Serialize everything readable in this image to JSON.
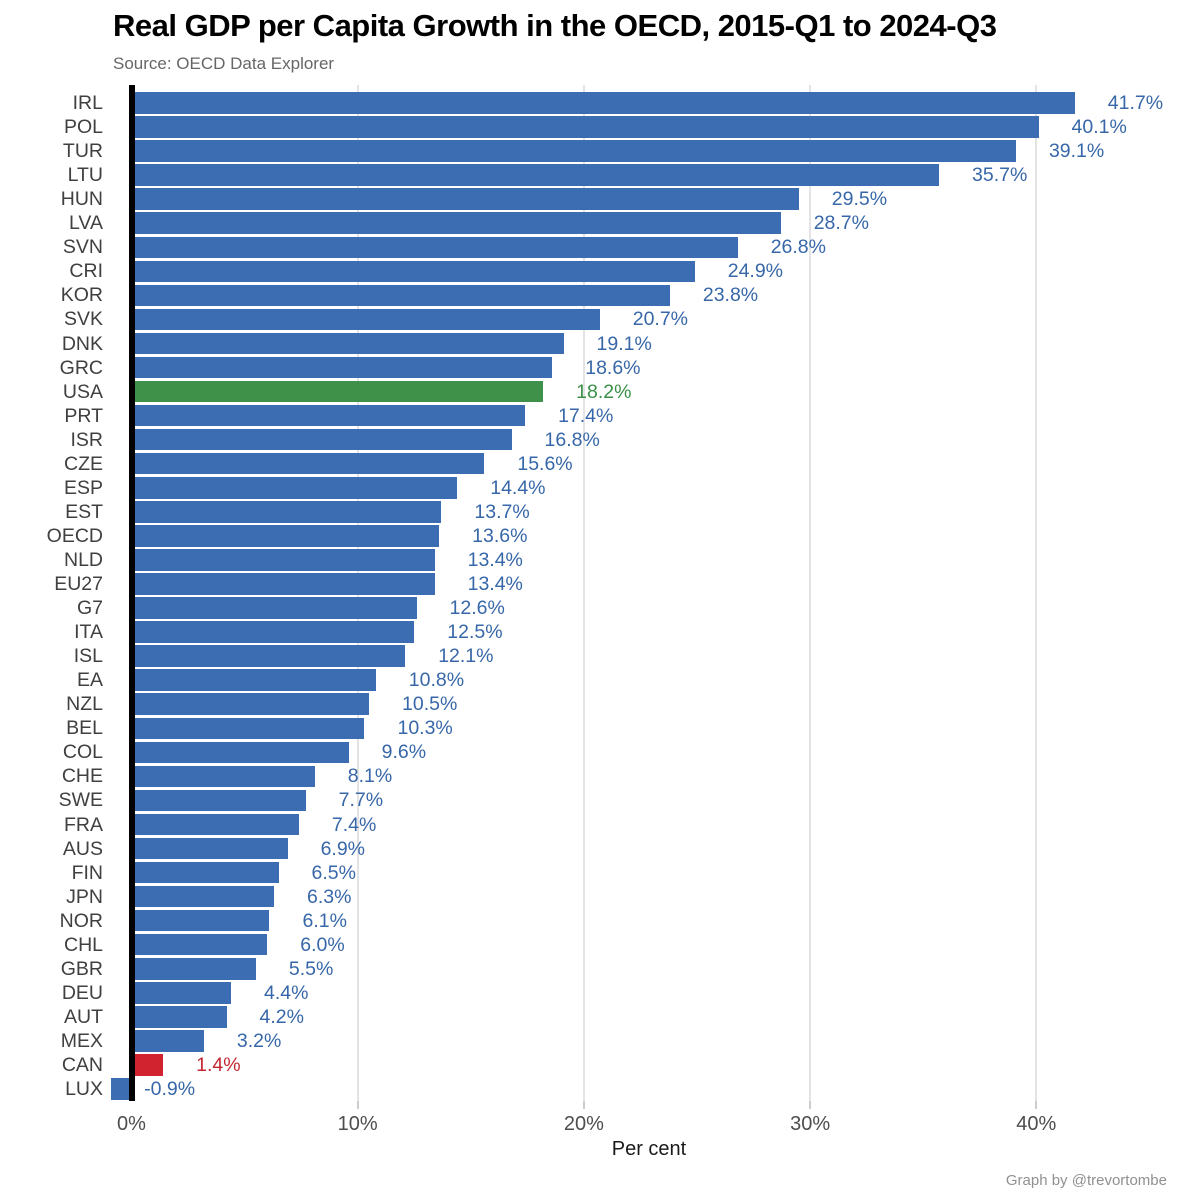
{
  "header": {
    "title": "Real GDP per Capita Growth in the OECD, 2015-Q1 to 2024-Q3",
    "subtitle": "Source: OECD Data Explorer"
  },
  "attribution": "Graph by @trevortombe",
  "chart_data": {
    "type": "bar",
    "orientation": "horizontal",
    "title": "Real GDP per Capita Growth in the OECD, 2015-Q1 to 2024-Q3",
    "subtitle": "Source: OECD Data Explorer",
    "xlabel": "Per cent",
    "ylabel": "",
    "xlim": [
      -2,
      46
    ],
    "grid": "vertical-light-gray",
    "legend": "none",
    "x_ticks": [
      {
        "value": 0,
        "label": "0%"
      },
      {
        "value": 10,
        "label": "10%"
      },
      {
        "value": 20,
        "label": "20%"
      },
      {
        "value": 30,
        "label": "30%"
      },
      {
        "value": 40,
        "label": "40%"
      }
    ],
    "entries": [
      {
        "label": "IRL",
        "value": 41.7,
        "display": "41.7%",
        "color": "blue"
      },
      {
        "label": "POL",
        "value": 40.1,
        "display": "40.1%",
        "color": "blue"
      },
      {
        "label": "TUR",
        "value": 39.1,
        "display": "39.1%",
        "color": "blue"
      },
      {
        "label": "LTU",
        "value": 35.7,
        "display": "35.7%",
        "color": "blue"
      },
      {
        "label": "HUN",
        "value": 29.5,
        "display": "29.5%",
        "color": "blue"
      },
      {
        "label": "LVA",
        "value": 28.7,
        "display": "28.7%",
        "color": "blue"
      },
      {
        "label": "SVN",
        "value": 26.8,
        "display": "26.8%",
        "color": "blue"
      },
      {
        "label": "CRI",
        "value": 24.9,
        "display": "24.9%",
        "color": "blue"
      },
      {
        "label": "KOR",
        "value": 23.8,
        "display": "23.8%",
        "color": "blue"
      },
      {
        "label": "SVK",
        "value": 20.7,
        "display": "20.7%",
        "color": "blue"
      },
      {
        "label": "DNK",
        "value": 19.1,
        "display": "19.1%",
        "color": "blue"
      },
      {
        "label": "GRC",
        "value": 18.6,
        "display": "18.6%",
        "color": "blue"
      },
      {
        "label": "USA",
        "value": 18.2,
        "display": "18.2%",
        "color": "green"
      },
      {
        "label": "PRT",
        "value": 17.4,
        "display": "17.4%",
        "color": "blue"
      },
      {
        "label": "ISR",
        "value": 16.8,
        "display": "16.8%",
        "color": "blue"
      },
      {
        "label": "CZE",
        "value": 15.6,
        "display": "15.6%",
        "color": "blue"
      },
      {
        "label": "ESP",
        "value": 14.4,
        "display": "14.4%",
        "color": "blue"
      },
      {
        "label": "EST",
        "value": 13.7,
        "display": "13.7%",
        "color": "blue"
      },
      {
        "label": "OECD",
        "value": 13.6,
        "display": "13.6%",
        "color": "blue"
      },
      {
        "label": "NLD",
        "value": 13.4,
        "display": "13.4%",
        "color": "blue"
      },
      {
        "label": "EU27",
        "value": 13.4,
        "display": "13.4%",
        "color": "blue"
      },
      {
        "label": "G7",
        "value": 12.6,
        "display": "12.6%",
        "color": "blue"
      },
      {
        "label": "ITA",
        "value": 12.5,
        "display": "12.5%",
        "color": "blue"
      },
      {
        "label": "ISL",
        "value": 12.1,
        "display": "12.1%",
        "color": "blue"
      },
      {
        "label": "EA",
        "value": 10.8,
        "display": "10.8%",
        "color": "blue"
      },
      {
        "label": "NZL",
        "value": 10.5,
        "display": "10.5%",
        "color": "blue"
      },
      {
        "label": "BEL",
        "value": 10.3,
        "display": "10.3%",
        "color": "blue"
      },
      {
        "label": "COL",
        "value": 9.6,
        "display": "9.6%",
        "color": "blue"
      },
      {
        "label": "CHE",
        "value": 8.1,
        "display": "8.1%",
        "color": "blue"
      },
      {
        "label": "SWE",
        "value": 7.7,
        "display": "7.7%",
        "color": "blue"
      },
      {
        "label": "FRA",
        "value": 7.4,
        "display": "7.4%",
        "color": "blue"
      },
      {
        "label": "AUS",
        "value": 6.9,
        "display": "6.9%",
        "color": "blue"
      },
      {
        "label": "FIN",
        "value": 6.5,
        "display": "6.5%",
        "color": "blue"
      },
      {
        "label": "JPN",
        "value": 6.3,
        "display": "6.3%",
        "color": "blue"
      },
      {
        "label": "NOR",
        "value": 6.1,
        "display": "6.1%",
        "color": "blue"
      },
      {
        "label": "CHL",
        "value": 6.0,
        "display": "6.0%",
        "color": "blue"
      },
      {
        "label": "GBR",
        "value": 5.5,
        "display": "5.5%",
        "color": "blue"
      },
      {
        "label": "DEU",
        "value": 4.4,
        "display": "4.4%",
        "color": "blue"
      },
      {
        "label": "AUT",
        "value": 4.2,
        "display": "4.2%",
        "color": "blue"
      },
      {
        "label": "MEX",
        "value": 3.2,
        "display": "3.2%",
        "color": "blue"
      },
      {
        "label": "CAN",
        "value": 1.4,
        "display": "1.4%",
        "color": "red"
      },
      {
        "label": "LUX",
        "value": -0.9,
        "display": "-0.9%",
        "color": "blue"
      }
    ]
  },
  "colors": {
    "bar": {
      "blue": "#3c6cb1",
      "green": "#3f9149",
      "red": "#d0232f"
    },
    "value_text": {
      "blue": "#3767a8",
      "green": "#3a9048",
      "red": "#c42730"
    },
    "category_text": "#404040",
    "tick_text": "#4d4d4d",
    "gridline": "#e4e4e4",
    "tick_mark": "#cdcdcd",
    "axis_line": "#000000"
  }
}
